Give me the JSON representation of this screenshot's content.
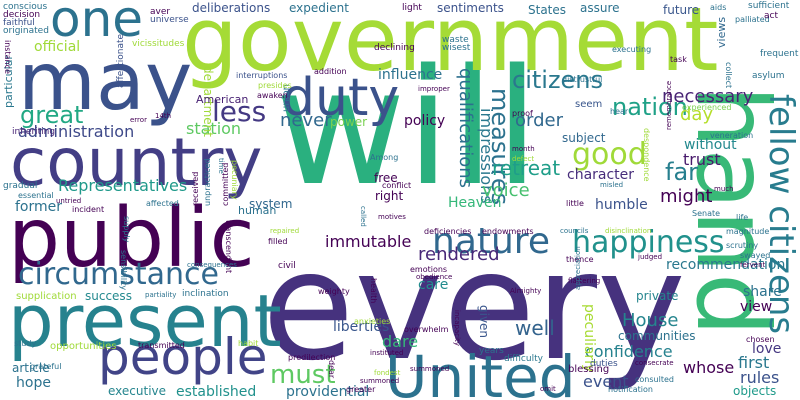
{
  "words": [
    {
      "text": "will",
      "color": "#2ab07f"
    },
    {
      "text": "every",
      "color": "#46327e"
    },
    {
      "text": "government",
      "color": "#a5db36"
    },
    {
      "text": "public",
      "color": "#440154"
    },
    {
      "text": "country",
      "color": "#433e85"
    },
    {
      "text": "may",
      "color": "#3b528b"
    },
    {
      "text": "one",
      "color": "#2c728e"
    },
    {
      "text": "present",
      "color": "#26828e"
    },
    {
      "text": "hand",
      "color": "#38b977"
    },
    {
      "text": "United",
      "color": "#2c728e"
    },
    {
      "text": "people",
      "color": "#414487"
    },
    {
      "text": "duty",
      "color": "#3b528b"
    },
    {
      "text": "circumstance",
      "color": "#31688e"
    },
    {
      "text": "nature",
      "color": "#31688e"
    },
    {
      "text": "fellow citizens",
      "color": "#287c8e"
    },
    {
      "text": "happiness",
      "color": "#21918c"
    },
    {
      "text": "less",
      "color": "#443983"
    },
    {
      "text": "great",
      "color": "#22a884"
    },
    {
      "text": "citizens",
      "color": "#2a788e"
    },
    {
      "text": "nation",
      "color": "#1fa187"
    },
    {
      "text": "measures",
      "color": "#2c728e"
    },
    {
      "text": "good",
      "color": "#a0da39"
    },
    {
      "text": "far",
      "color": "#277f8e"
    },
    {
      "text": "must",
      "color": "#5ec962"
    },
    {
      "text": "House",
      "color": "#25858e"
    },
    {
      "text": "well",
      "color": "#33638d"
    },
    {
      "text": "rendered",
      "color": "#482878"
    },
    {
      "text": "immutable",
      "color": "#440154"
    },
    {
      "text": "Representatives",
      "color": "#1f998a"
    },
    {
      "text": "administration",
      "color": "#3e4989"
    },
    {
      "text": "station",
      "color": "#5ec962"
    },
    {
      "text": "department",
      "color": "#a0da39"
    },
    {
      "text": "qualifications",
      "color": "#2d708e"
    },
    {
      "text": "impressions",
      "color": "#2a788e"
    },
    {
      "text": "retreat",
      "color": "#1f9e89"
    },
    {
      "text": "voice",
      "color": "#46c06f"
    },
    {
      "text": "Heaven",
      "color": "#35b779"
    },
    {
      "text": "humble",
      "color": "#3b528b"
    },
    {
      "text": "character",
      "color": "#472d7b"
    },
    {
      "text": "might",
      "color": "#440154"
    },
    {
      "text": "trust",
      "color": "#481a6c"
    },
    {
      "text": "without",
      "color": "#23898e"
    },
    {
      "text": "necessary",
      "color": "#482475"
    },
    {
      "text": "day",
      "color": "#b5de2b"
    },
    {
      "text": "order",
      "color": "#31688e"
    },
    {
      "text": "policy",
      "color": "#440154"
    },
    {
      "text": "never",
      "color": "#31688e"
    },
    {
      "text": "power",
      "color": "#7ad151"
    },
    {
      "text": "influence",
      "color": "#2c728e"
    },
    {
      "text": "liberties",
      "color": "#39568c"
    },
    {
      "text": "dare",
      "color": "#35b779"
    },
    {
      "text": "care",
      "color": "#228c8d"
    },
    {
      "text": "former",
      "color": "#2c728e"
    },
    {
      "text": "hope",
      "color": "#2c728e"
    },
    {
      "text": "executive",
      "color": "#25858e"
    },
    {
      "text": "established",
      "color": "#21918c"
    },
    {
      "text": "providential",
      "color": "#2c728e"
    },
    {
      "text": "confidence",
      "color": "#26828e"
    },
    {
      "text": "event",
      "color": "#3b528b"
    },
    {
      "text": "whose",
      "color": "#440154"
    },
    {
      "text": "first",
      "color": "#2a788e"
    },
    {
      "text": "love",
      "color": "#453781"
    },
    {
      "text": "rules",
      "color": "#3b528b"
    },
    {
      "text": "objects",
      "color": "#1f9a8a"
    },
    {
      "text": "share",
      "color": "#2c728e"
    },
    {
      "text": "view",
      "color": "#440154"
    },
    {
      "text": "private",
      "color": "#25858e"
    },
    {
      "text": "recommendation",
      "color": "#2a788e"
    },
    {
      "text": "communities",
      "color": "#2c728e"
    },
    {
      "text": "peculiarly",
      "color": "#a8db34"
    },
    {
      "text": "given",
      "color": "#39568c"
    },
    {
      "text": "success",
      "color": "#23898e"
    },
    {
      "text": "system",
      "color": "#31688e"
    },
    {
      "text": "human",
      "color": "#2c728e"
    },
    {
      "text": "right",
      "color": "#440154"
    },
    {
      "text": "free",
      "color": "#440154"
    },
    {
      "text": "official",
      "color": "#a0da39"
    },
    {
      "text": "article",
      "color": "#2c728e"
    },
    {
      "text": "American",
      "color": "#482173"
    },
    {
      "text": "deliberations",
      "color": "#3b528b"
    },
    {
      "text": "expedient",
      "color": "#2c728e"
    },
    {
      "text": "sentiments",
      "color": "#3b528b"
    },
    {
      "text": "States",
      "color": "#2c728e"
    },
    {
      "text": "assure",
      "color": "#2c728e"
    },
    {
      "text": "future",
      "color": "#39568c"
    },
    {
      "text": "supplication",
      "color": "#a0da39"
    },
    {
      "text": "opportunities",
      "color": "#a0da39"
    },
    {
      "text": "particular",
      "color": "#2a788e"
    },
    {
      "text": "union",
      "color": "#2c728e"
    },
    {
      "text": "subject",
      "color": "#31688e"
    },
    {
      "text": "seem",
      "color": "#39568c"
    },
    {
      "text": "views",
      "color": "#31688e"
    },
    {
      "text": "blessing",
      "color": "#440154"
    },
    {
      "text": "years",
      "color": "#2c728e"
    },
    {
      "text": "difficulty",
      "color": "#2a788e"
    },
    {
      "text": "duties",
      "color": "#3b528b"
    },
    {
      "text": "inheriting",
      "color": "#482475"
    },
    {
      "text": "gradual",
      "color": "#2c728e"
    },
    {
      "text": "conscious",
      "color": "#2c728e"
    },
    {
      "text": "decision",
      "color": "#440154"
    },
    {
      "text": "faithful",
      "color": "#3b528b"
    },
    {
      "text": "originated",
      "color": "#2c728e"
    },
    {
      "text": "instance",
      "color": "#440154"
    },
    {
      "text": "affectionate",
      "color": "#3b528b"
    },
    {
      "text": "vicissitudes",
      "color": "#a0da39"
    },
    {
      "text": "aver",
      "color": "#440154"
    },
    {
      "text": "universe",
      "color": "#3b528b"
    },
    {
      "text": "light",
      "color": "#440154"
    },
    {
      "text": "aids",
      "color": "#2c728e"
    },
    {
      "text": "palliated",
      "color": "#2c728e"
    },
    {
      "text": "sufficient",
      "color": "#2c728e"
    },
    {
      "text": "act",
      "color": "#440154"
    },
    {
      "text": "frequent",
      "color": "#2c728e"
    },
    {
      "text": "asylum",
      "color": "#2c728e"
    },
    {
      "text": "executing",
      "color": "#2c728e"
    },
    {
      "text": "task",
      "color": "#440154"
    },
    {
      "text": "declining",
      "color": "#440154"
    },
    {
      "text": "waste",
      "color": "#2c728e"
    },
    {
      "text": "wisest",
      "color": "#2c728e"
    },
    {
      "text": "addition",
      "color": "#440154"
    },
    {
      "text": "interruptions",
      "color": "#3b528b"
    },
    {
      "text": "presides",
      "color": "#a0da39"
    },
    {
      "text": "awaken",
      "color": "#440154"
    },
    {
      "text": "improper",
      "color": "#440154"
    },
    {
      "text": "distrustful",
      "color": "#2c728e"
    },
    {
      "text": "proof",
      "color": "#440154"
    },
    {
      "text": "hear",
      "color": "#2c728e"
    },
    {
      "text": "experienced",
      "color": "#7ad151"
    },
    {
      "text": "collect",
      "color": "#2c728e"
    },
    {
      "text": "veneration",
      "color": "#2c728e"
    },
    {
      "text": "month",
      "color": "#440154"
    },
    {
      "text": "defect",
      "color": "#a0da39"
    },
    {
      "text": "Among",
      "color": "#2c728e"
    },
    {
      "text": "sensibility",
      "color": "#2c728e"
    },
    {
      "text": "affected",
      "color": "#2c728e"
    },
    {
      "text": "incident",
      "color": "#440154"
    },
    {
      "text": "essential",
      "color": "#2c728e"
    },
    {
      "text": "untried",
      "color": "#440154"
    },
    {
      "text": "error",
      "color": "#440154"
    },
    {
      "text": "14th",
      "color": "#440154"
    },
    {
      "text": "pecuniary",
      "color": "#a0da39"
    },
    {
      "text": "time",
      "color": "#2c728e"
    },
    {
      "text": "conflict",
      "color": "#440154"
    },
    {
      "text": "misled",
      "color": "#2c728e"
    },
    {
      "text": "despondence",
      "color": "#a0da39"
    },
    {
      "text": "remembrance",
      "color": "#440154"
    },
    {
      "text": "much",
      "color": "#440154"
    },
    {
      "text": "life",
      "color": "#2c728e"
    },
    {
      "text": "Senate",
      "color": "#2c728e"
    },
    {
      "text": "magnitude",
      "color": "#2c728e"
    },
    {
      "text": "judged",
      "color": "#440154"
    },
    {
      "text": "councils",
      "color": "#2c728e"
    },
    {
      "text": "endowments",
      "color": "#440154"
    },
    {
      "text": "deficiencies",
      "color": "#440154"
    },
    {
      "text": "disinclination",
      "color": "#a0da39"
    },
    {
      "text": "motives",
      "color": "#440154"
    },
    {
      "text": "called",
      "color": "#2c728e"
    },
    {
      "text": "little",
      "color": "#440154"
    },
    {
      "text": "filled",
      "color": "#440154"
    },
    {
      "text": "repaired",
      "color": "#a0da39"
    },
    {
      "text": "transcendent",
      "color": "#440154"
    },
    {
      "text": "committed",
      "color": "#440154"
    },
    {
      "text": "unpracticed",
      "color": "#2c728e"
    },
    {
      "text": "received",
      "color": "#440154"
    },
    {
      "text": "supply",
      "color": "#2c728e"
    },
    {
      "text": "partiality",
      "color": "#2c728e"
    },
    {
      "text": "inclination",
      "color": "#2c728e"
    },
    {
      "text": "consequences",
      "color": "#2c728e"
    },
    {
      "text": "civil",
      "color": "#440154"
    },
    {
      "text": "thence",
      "color": "#440154"
    },
    {
      "text": "scrutiny",
      "color": "#2c728e"
    },
    {
      "text": "swayed",
      "color": "#2c728e"
    },
    {
      "text": "fervent",
      "color": "#440154"
    },
    {
      "text": "chosen",
      "color": "#440154"
    },
    {
      "text": "emotions",
      "color": "#440154"
    },
    {
      "text": "obedience",
      "color": "#440154"
    },
    {
      "text": "weighty",
      "color": "#440154"
    },
    {
      "text": "health",
      "color": "#440154"
    },
    {
      "text": "Almighty",
      "color": "#440154"
    },
    {
      "text": "flattering",
      "color": "#440154"
    },
    {
      "text": "appreciation",
      "color": "#2c728e"
    },
    {
      "text": "anxieties",
      "color": "#a0da39"
    },
    {
      "text": "overwhelm",
      "color": "#440154"
    },
    {
      "text": "instituted",
      "color": "#440154"
    },
    {
      "text": "greater",
      "color": "#440154"
    },
    {
      "text": "fondest",
      "color": "#a0da39"
    },
    {
      "text": "predilection",
      "color": "#440154"
    },
    {
      "text": "dear",
      "color": "#440154"
    },
    {
      "text": "habit",
      "color": "#a0da39"
    },
    {
      "text": "transmitted",
      "color": "#440154"
    },
    {
      "text": "incapacity",
      "color": "#440154"
    },
    {
      "text": "summoned",
      "color": "#440154"
    },
    {
      "text": "study",
      "color": "#2c728e"
    },
    {
      "text": "grateful",
      "color": "#2c728e"
    },
    {
      "text": "consulted",
      "color": "#2c728e"
    },
    {
      "text": "notification",
      "color": "#2c728e"
    },
    {
      "text": "consecrate",
      "color": "#440154"
    },
    {
      "text": "omit",
      "color": "#440154"
    },
    {
      "text": "summoned",
      "color": "#440154"
    }
  ]
}
